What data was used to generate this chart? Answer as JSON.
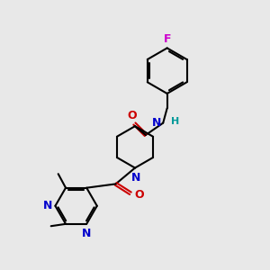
{
  "bg_color": "#e8e8e8",
  "atom_colors": {
    "N": "#0000cc",
    "O": "#cc0000",
    "F": "#cc00cc",
    "H": "#009999"
  },
  "bond_color": "#000000",
  "bond_width": 1.5
}
